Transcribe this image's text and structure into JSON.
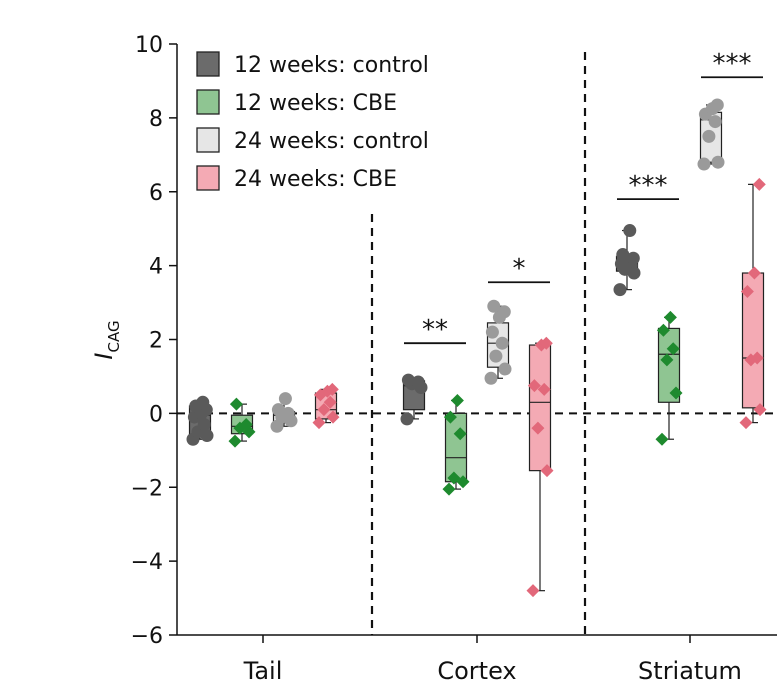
{
  "chart_data": {
    "type": "box-strip",
    "ylabel_main": "I",
    "ylabel_sub": "CAG",
    "ylim": [
      -6,
      10
    ],
    "yticks": [
      -6,
      -4,
      -2,
      0,
      2,
      4,
      6,
      8,
      10
    ],
    "ytick_labels": [
      "−6",
      "−4",
      "−2",
      "0",
      "2",
      "4",
      "6",
      "8",
      "10"
    ],
    "reference_line_y": 0,
    "categories": [
      "Tail",
      "Cortex",
      "Striatum"
    ],
    "series": [
      {
        "name": "12 weeks: control",
        "marker": "circle",
        "box_fill": "#6b6b6b",
        "point_color": "#5a5a5a"
      },
      {
        "name": "12 weeks: CBE",
        "marker": "diamond",
        "box_fill": "#8fc592",
        "point_color": "#1e8a2e"
      },
      {
        "name": "24 weeks: control",
        "marker": "circle",
        "box_fill": "#e6e6e6",
        "point_color": "#9a9a9a"
      },
      {
        "name": "24 weeks: CBE",
        "marker": "diamond",
        "box_fill": "#f4aab4",
        "point_color": "#e2687a"
      }
    ],
    "groups": [
      {
        "category": "Tail",
        "series": 0,
        "points": [
          -0.7,
          -0.6,
          -0.5,
          -0.3,
          -0.1,
          0.0,
          0.1,
          0.2,
          0.3
        ],
        "box": {
          "q1": -0.6,
          "median": -0.05,
          "q3": 0.2,
          "whisker_low": -0.7,
          "whisker_high": 0.3
        }
      },
      {
        "category": "Tail",
        "series": 1,
        "points": [
          -0.75,
          -0.5,
          -0.4,
          -0.3,
          0.25
        ],
        "box": {
          "q1": -0.55,
          "median": -0.35,
          "q3": -0.05,
          "whisker_low": -0.75,
          "whisker_high": 0.25
        }
      },
      {
        "category": "Tail",
        "series": 2,
        "points": [
          -0.35,
          -0.2,
          -0.1,
          0.0,
          0.1,
          0.4
        ],
        "box": {
          "q1": -0.25,
          "median": -0.05,
          "q3": 0.05,
          "whisker_low": -0.35,
          "whisker_high": 0.4
        }
      },
      {
        "category": "Tail",
        "series": 3,
        "points": [
          -0.25,
          -0.1,
          0.1,
          0.3,
          0.5,
          0.6,
          0.65
        ],
        "box": {
          "q1": -0.15,
          "median": 0.1,
          "q3": 0.55,
          "whisker_low": -0.25,
          "whisker_high": 0.65
        }
      },
      {
        "category": "Cortex",
        "series": 0,
        "points": [
          -0.15,
          0.7,
          0.8,
          0.85,
          0.9
        ],
        "box": {
          "q1": 0.1,
          "median": 0.75,
          "q3": 0.88,
          "whisker_low": -0.15,
          "whisker_high": 0.9
        }
      },
      {
        "category": "Cortex",
        "series": 1,
        "points": [
          -2.05,
          -1.85,
          -1.75,
          -0.55,
          -0.1,
          0.35
        ],
        "box": {
          "q1": -1.85,
          "median": -1.2,
          "q3": 0.0,
          "whisker_low": -2.05,
          "whisker_high": 0.35
        }
      },
      {
        "category": "Cortex",
        "series": 2,
        "points": [
          0.95,
          1.2,
          1.55,
          1.9,
          2.2,
          2.6,
          2.75,
          2.9
        ],
        "box": {
          "q1": 1.25,
          "median": 1.9,
          "q3": 2.45,
          "whisker_low": 0.95,
          "whisker_high": 2.9
        }
      },
      {
        "category": "Cortex",
        "series": 3,
        "points": [
          -4.8,
          -1.55,
          -0.4,
          0.65,
          0.75,
          1.85,
          1.9
        ],
        "box": {
          "q1": -1.55,
          "median": 0.3,
          "q3": 1.85,
          "whisker_low": -4.8,
          "whisker_high": 1.9
        }
      },
      {
        "category": "Striatum",
        "series": 0,
        "points": [
          3.35,
          3.8,
          3.9,
          4.0,
          4.05,
          4.1,
          4.2,
          4.3,
          4.95
        ],
        "box": {
          "q1": 3.85,
          "median": 4.05,
          "q3": 4.25,
          "whisker_low": 3.35,
          "whisker_high": 4.95
        }
      },
      {
        "category": "Striatum",
        "series": 1,
        "points": [
          -0.7,
          0.55,
          1.45,
          1.75,
          2.25,
          2.6
        ],
        "box": {
          "q1": 0.3,
          "median": 1.6,
          "q3": 2.3,
          "whisker_low": -0.7,
          "whisker_high": 2.6
        }
      },
      {
        "category": "Striatum",
        "series": 2,
        "points": [
          6.75,
          6.8,
          7.5,
          7.9,
          8.1,
          8.25,
          8.35
        ],
        "box": {
          "q1": 6.8,
          "median": 7.95,
          "q3": 8.15,
          "whisker_low": 6.75,
          "whisker_high": 8.35
        }
      },
      {
        "category": "Striatum",
        "series": 3,
        "points": [
          -0.25,
          0.1,
          1.45,
          1.5,
          3.3,
          3.8,
          6.2
        ],
        "box": {
          "q1": 0.15,
          "median": 1.5,
          "q3": 3.8,
          "whisker_low": -0.25,
          "whisker_high": 6.2
        }
      }
    ],
    "significance": [
      {
        "category": "Cortex",
        "from_series": 0,
        "to_series": 1,
        "y": 1.9,
        "label": "**"
      },
      {
        "category": "Cortex",
        "from_series": 2,
        "to_series": 3,
        "y": 3.55,
        "label": "*"
      },
      {
        "category": "Striatum",
        "from_series": 0,
        "to_series": 1,
        "y": 5.8,
        "label": "***"
      },
      {
        "category": "Striatum",
        "from_series": 2,
        "to_series": 3,
        "y": 9.1,
        "label": "***"
      }
    ]
  }
}
